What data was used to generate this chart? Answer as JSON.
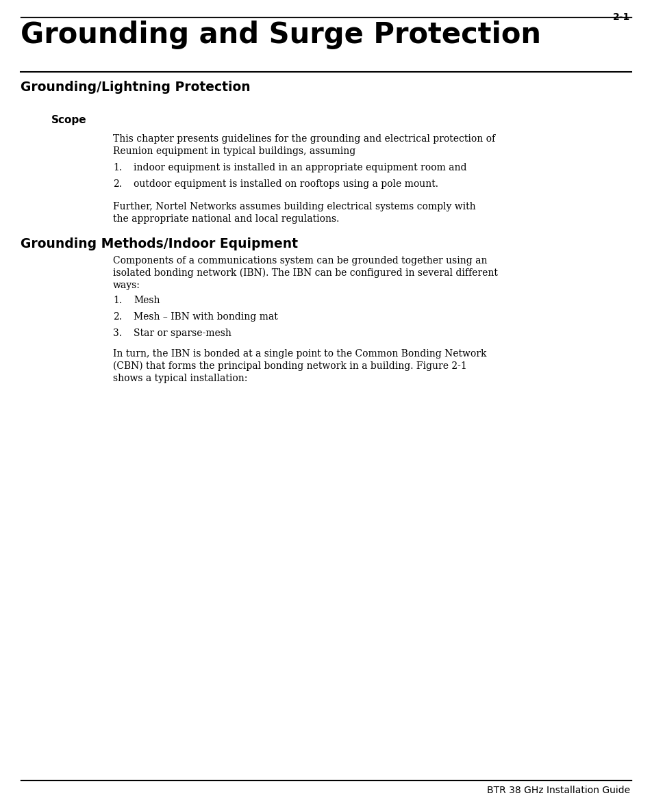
{
  "page_number": "2-1",
  "chapter_title": "Grounding and Surge Protection",
  "footer_text": "BTR 38 GHz Installation Guide",
  "section1_heading": "Grounding/Lightning Protection",
  "subsection1_heading": "Scope",
  "scope_para_line1": "This chapter presents guidelines for the grounding and electrical protection of",
  "scope_para_line2": "Reunion equipment in typical buildings, assuming",
  "scope_list": [
    "indoor equipment is installed in an appropriate equipment room and",
    "outdoor equipment is installed on rooftops using a pole mount."
  ],
  "scope_para2_line1": "Further, Nortel Networks assumes building electrical systems comply with",
  "scope_para2_line2": "the appropriate national and local regulations.",
  "section2_heading": "Grounding Methods/Indoor Equipment",
  "grounding_para_line1": "Components of a communications system can be grounded together using an",
  "grounding_para_line2": "isolated bonding network (IBN). The IBN can be configured in several different",
  "grounding_para_line3": "ways:",
  "grounding_list": [
    "Mesh",
    "Mesh – IBN with bonding mat",
    "Star or sparse-mesh"
  ],
  "grounding_para2_line1": "In turn, the IBN is bonded at a single point to the Common Bonding Network",
  "grounding_para2_line2": "(CBN) that forms the principal bonding network in a building. Figure 2-1",
  "grounding_para2_line3": "shows a typical installation:",
  "bg_color": "#ffffff",
  "text_color": "#000000"
}
